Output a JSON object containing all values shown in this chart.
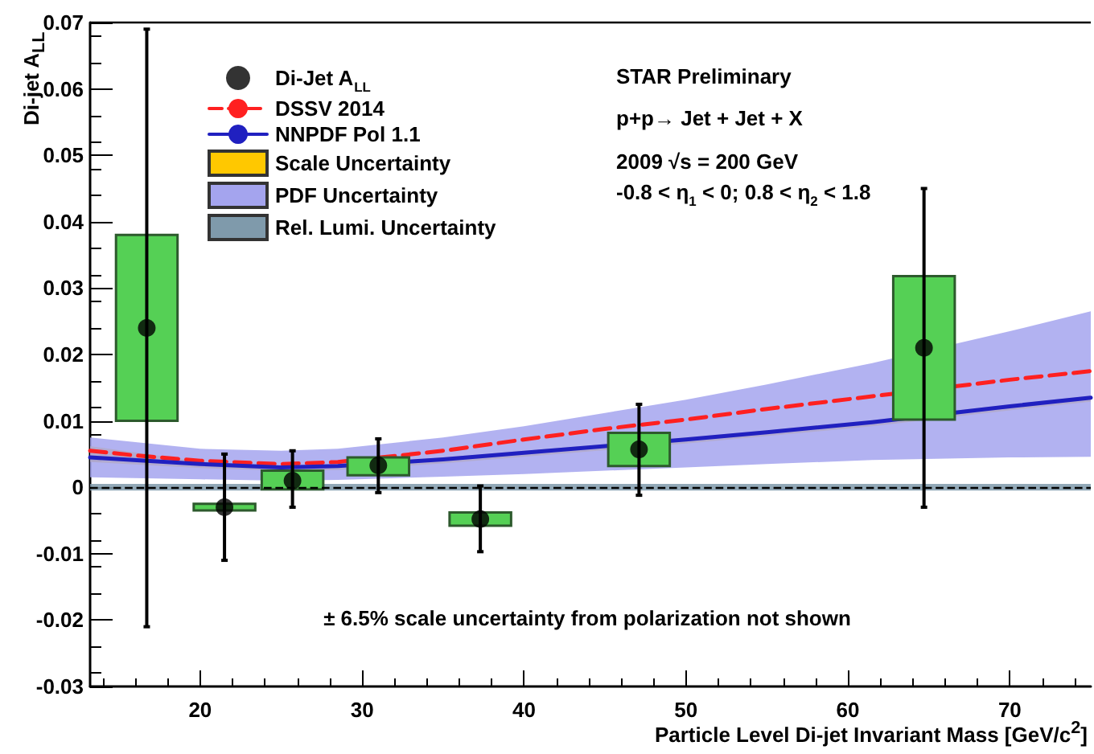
{
  "chart_data": {
    "type": "scatter",
    "xlabel": "Particle Level Di-jet Invariant Mass [GeV/c$^{2}$]",
    "ylabel": "Di-jet A$_{LL}$",
    "xlim": [
      13.2,
      75
    ],
    "xticks": [
      20,
      30,
      40,
      50,
      60,
      70
    ],
    "ylim": [
      -0.03,
      0.07
    ],
    "yticks": [
      -0.03,
      -0.02,
      -0.01,
      0,
      0.01,
      0.02,
      0.03,
      0.04,
      0.05,
      0.06,
      0.07
    ],
    "grid": false,
    "legend": "top left",
    "series": [
      {
        "name": "Di-Jet A$_{LL}$",
        "marker": "circle",
        "color": "#000000",
        "x": [
          16.7,
          21.5,
          25.7,
          31,
          37.3,
          47.1,
          64.7
        ],
        "values": [
          0.024,
          -0.003,
          0.001,
          0.0033,
          -0.0048,
          0.0057,
          0.021
        ],
        "errors": [
          [
            -0.021,
            0.069
          ],
          [
            -0.011,
            0.005
          ],
          [
            -0.003,
            0.0055
          ],
          [
            -0.0008,
            0.0073
          ],
          [
            -0.0097,
            0.0002
          ],
          [
            -0.0012,
            0.0125
          ],
          [
            -0.003,
            0.045
          ]
        ]
      },
      {
        "name": "DSSV 2014",
        "type": "line",
        "color": "#ff2020",
        "line_style": "dashed",
        "x": [
          13.2,
          16,
          20,
          25,
          28.5,
          35,
          40,
          45,
          50,
          55,
          61.5,
          70,
          75
        ],
        "values": [
          0.0055,
          0.0048,
          0.004,
          0.0035,
          0.0038,
          0.0055,
          0.0072,
          0.0088,
          0.0102,
          0.0118,
          0.0137,
          0.0162,
          0.0175
        ]
      },
      {
        "name": "NNPDF Pol 1.1",
        "type": "line",
        "color": "#2020c0",
        "line_style": "solid",
        "x": [
          13.2,
          20,
          25,
          28.5,
          35,
          40,
          45,
          50,
          55,
          61.5,
          70,
          75
        ],
        "values": [
          0.0045,
          0.0035,
          0.003,
          0.0032,
          0.0042,
          0.0052,
          0.0062,
          0.0072,
          0.0083,
          0.0098,
          0.0122,
          0.0135
        ]
      },
      {
        "name": "Scale Uncertainty",
        "type": "area",
        "color": "#ffc800",
        "x": [
          13.2,
          20,
          25,
          28.5,
          35,
          40,
          45,
          50,
          55,
          61.5,
          70,
          75
        ],
        "values": [
          null,
          null,
          null,
          null,
          null,
          null,
          null,
          null,
          null,
          null,
          null,
          null
        ],
        "lower": [
          0.0038,
          0.0029,
          0.0025,
          0.0026,
          0.0036,
          0.0046,
          0.0056,
          0.0066,
          0.0077,
          0.0092,
          0.0116,
          0.0129
        ],
        "upper": [
          0.0062,
          0.0039,
          0.0033,
          0.0035,
          0.0045,
          0.0055,
          0.0065,
          0.0075,
          0.0086,
          0.0101,
          0.0125,
          0.0138
        ]
      },
      {
        "name": "PDF Uncertainty",
        "type": "area",
        "color": "#a4a4ee",
        "x": [
          13.2,
          20,
          25,
          28.5,
          35,
          40,
          45,
          50,
          55,
          61.5,
          70,
          75
        ],
        "values": [
          null,
          null,
          null,
          null,
          null,
          null,
          null,
          null,
          null,
          null,
          null,
          null
        ],
        "lower": [
          0.0015,
          0.0012,
          0.001,
          0.0011,
          0.0016,
          0.002,
          0.0025,
          0.003,
          0.0035,
          0.0041,
          0.0045,
          0.0046
        ],
        "upper": [
          0.0075,
          0.0058,
          0.0055,
          0.0058,
          0.0075,
          0.0092,
          0.0112,
          0.0132,
          0.0155,
          0.0187,
          0.0235,
          0.0265
        ]
      },
      {
        "name": "Rel. Lumi. Uncertainty",
        "type": "area",
        "color": "#7f9aab",
        "x": [
          13.2,
          75
        ],
        "values": [
          null,
          null
        ],
        "lower": [
          -0.0005,
          -0.0005
        ],
        "upper": [
          0.0005,
          0.0005
        ]
      },
      {
        "type": "bar",
        "color": "#55d055",
        "x": [
          16.7,
          21.5,
          25.7,
          31,
          37.3,
          47.1,
          64.7
        ],
        "base": [
          0.01,
          -0.0035,
          -0.0003,
          0.0018,
          -0.0058,
          0.0032,
          0.0102
        ],
        "values": [
          0.028,
          0.001,
          0.0028,
          0.0027,
          0.002,
          0.005,
          0.0216
        ]
      }
    ],
    "ref_lines": [
      {
        "axis": "y",
        "value": 0,
        "color": "#000000",
        "line_style": "dashed"
      }
    ],
    "annotations": [
      "STAR Preliminary",
      "p+p→ Jet + Jet + X",
      "2009 √s = 200 GeV",
      "-0.8 < η$_{1}$ < 0; 0.8 < η$_{2}$ < 1.8",
      "± 6.5% scale uncertainty from polarization not shown"
    ]
  }
}
